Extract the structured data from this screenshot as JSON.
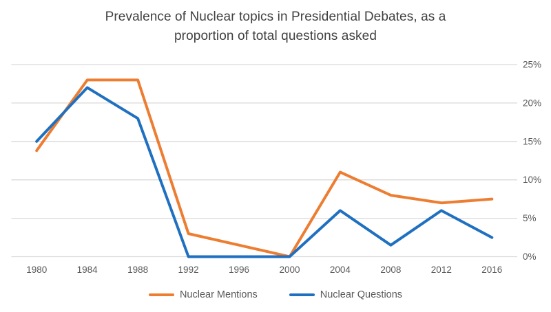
{
  "chart_data": {
    "type": "line",
    "title": "Prevalence of Nuclear topics in Presidential Debates, as a proportion of total questions asked",
    "title_lines": [
      "Prevalence of Nuclear topics in Presidential Debates, as a",
      "proportion of total questions asked"
    ],
    "categories": [
      "1980",
      "1984",
      "1988",
      "1992",
      "1996",
      "2000",
      "2004",
      "2008",
      "2012",
      "2016"
    ],
    "series": [
      {
        "name": "Nuclear Mentions",
        "color": "#ED7D31",
        "values": [
          13.8,
          23,
          23,
          3,
          1.5,
          0,
          11,
          8,
          7,
          7.5
        ]
      },
      {
        "name": "Nuclear Questions",
        "color": "#1F70C0",
        "values": [
          15,
          22,
          18,
          0,
          0,
          0,
          6,
          1.5,
          6,
          2.5
        ]
      }
    ],
    "xlabel": "",
    "ylabel": "",
    "y_axis": {
      "side": "right",
      "min": 0,
      "max": 25,
      "tick_values": [
        0,
        5,
        10,
        15,
        20,
        25
      ],
      "tick_labels": [
        "0%",
        "5%",
        "10%",
        "15%",
        "20%",
        "25%"
      ]
    },
    "grid": true,
    "legend_position": "bottom",
    "colors": {
      "background": "#FFFFFF",
      "gridline": "#D9D9D9",
      "title_text": "#404040",
      "axis_text": "#595959",
      "legend_text": "#595959"
    }
  }
}
